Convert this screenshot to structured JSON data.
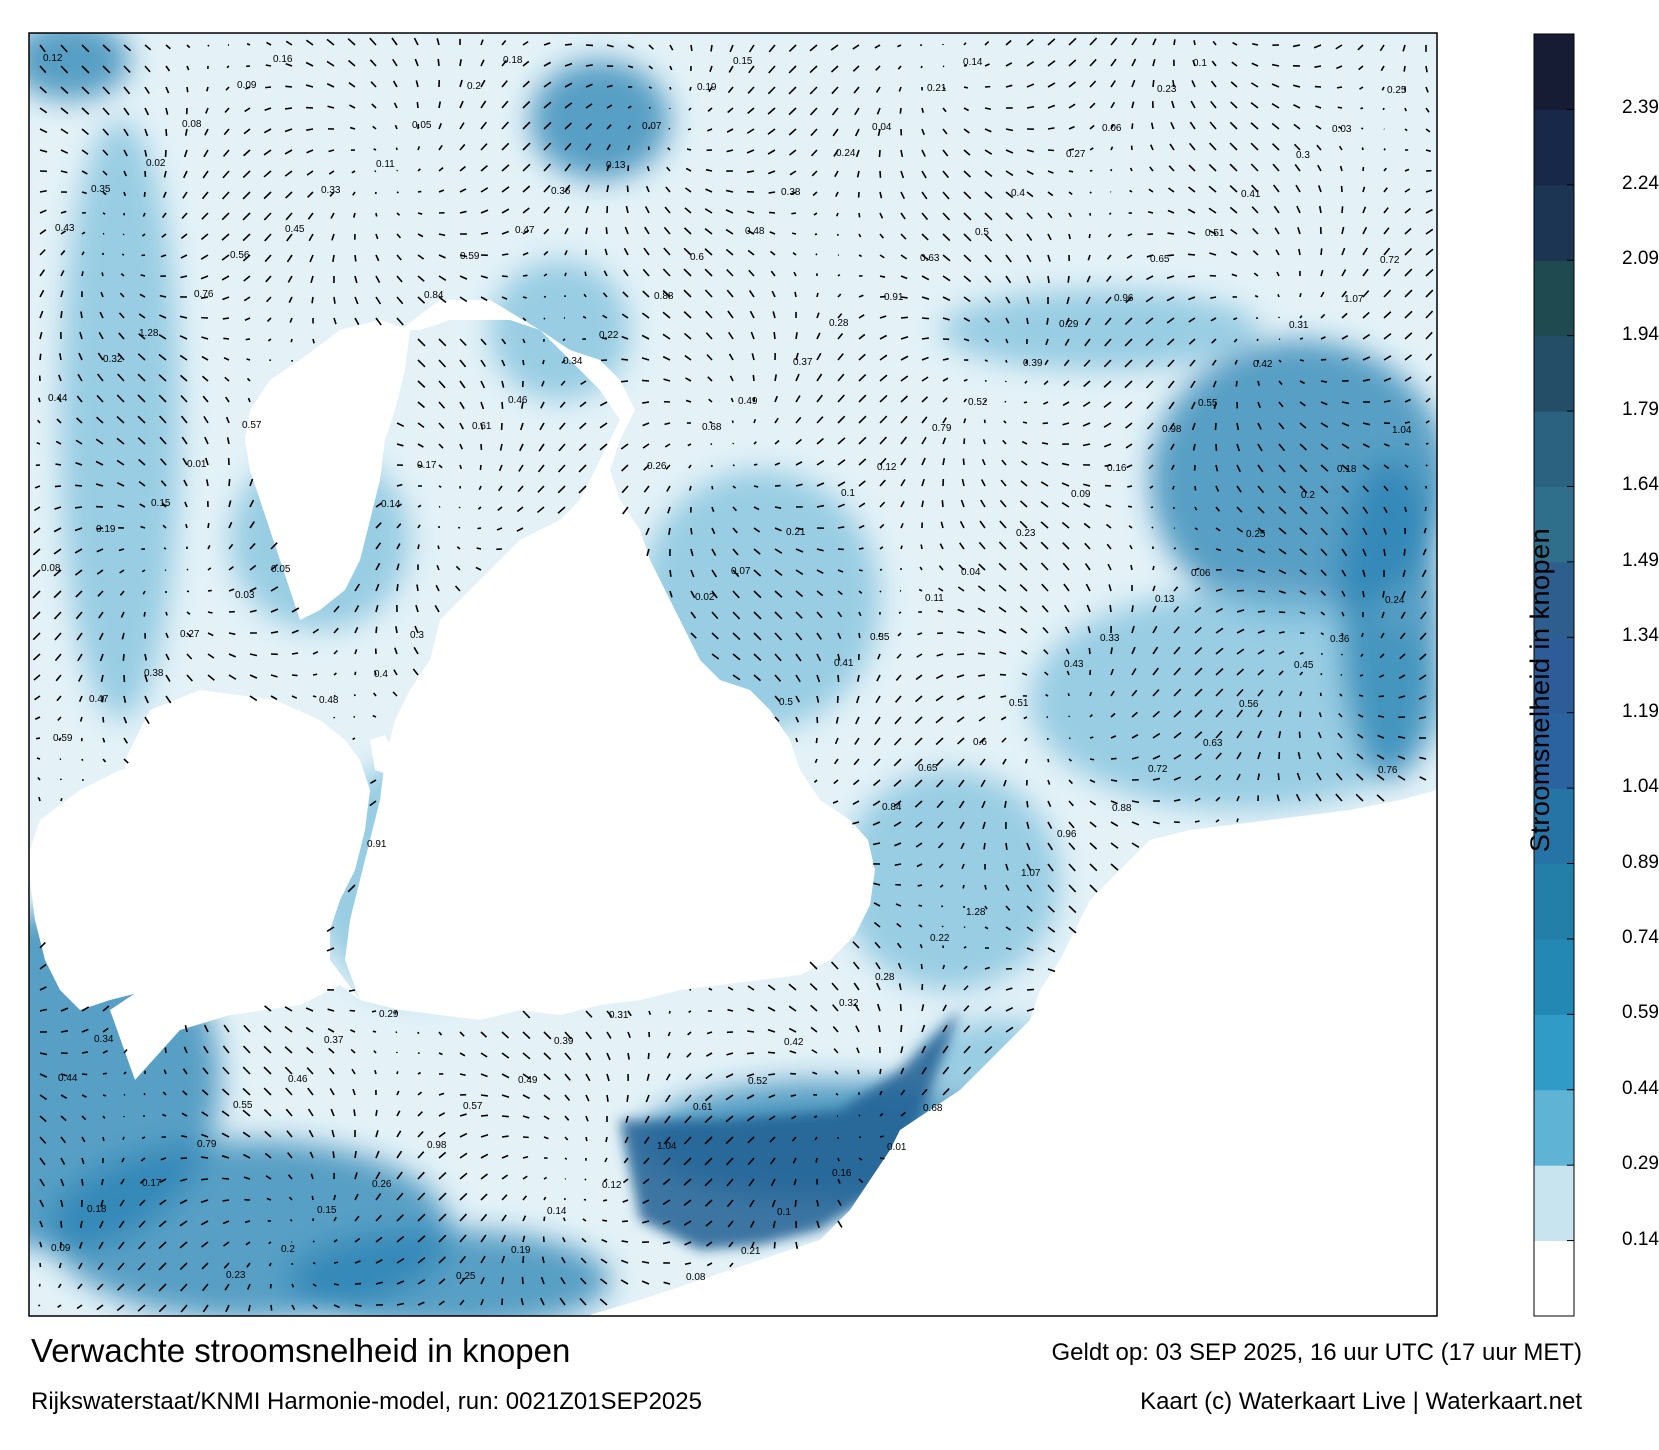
{
  "footer": {
    "title": "Verwachte stroomsnelheid in knopen",
    "model_run": "Rijkswaterstaat/KNMI Harmonie-model, run: 0021Z01SEP2025",
    "valid_time": "Geldt op: 03 SEP 2025, 16 uur UTC (17 uur MET)",
    "credit": "Kaart (c) Waterkaart Live | Waterkaart.net"
  },
  "colorbar": {
    "title": "Stroomsnelheid in knopen",
    "tick_labels": [
      "0.14",
      "0.29",
      "0.44",
      "0.59",
      "0.74",
      "0.89",
      "1.04",
      "1.19",
      "1.34",
      "1.49",
      "1.64",
      "1.79",
      "1.94",
      "2.09",
      "2.24",
      "2.39"
    ],
    "band_colors": [
      "#ffffff",
      "#c8e4ef",
      "#5fb3d4",
      "#2f9bc6",
      "#2388b4",
      "#237fa8",
      "#2673a5",
      "#2b63a0",
      "#2d5c99",
      "#2e5e8e",
      "#2f6f8b",
      "#2b6280",
      "#244e68",
      "#1f4a4f",
      "#1b3553",
      "#182848",
      "#161c33"
    ]
  },
  "map": {
    "colors": {
      "land": "#ffffff",
      "sea_low": "#e4f2f8",
      "sea_mid": "#7fc0dc",
      "sea_high": "#2a83b3",
      "sea_peak": "#1e5f93",
      "arrow": "#000000"
    },
    "sample_labels": [
      "0.12",
      "0.16",
      "0.18",
      "0.15",
      "0.14",
      "0.1",
      "0.09",
      "0.2",
      "0.19",
      "0.21",
      "0.23",
      "0.25",
      "0.08",
      "0.05",
      "0.07",
      "0.04",
      "0.06",
      "0.03",
      "0.02",
      "0.11",
      "0.13",
      "0.24",
      "0.27",
      "0.3",
      "0.35",
      "0.33",
      "0.36",
      "0.38",
      "0.4",
      "0.41",
      "0.43",
      "0.45",
      "0.47",
      "0.48",
      "0.5",
      "0.51",
      "0.56",
      "0.59",
      "0.6",
      "0.63",
      "0.65",
      "0.72",
      "0.76",
      "0.84",
      "0.88",
      "0.91",
      "0.96",
      "1.07",
      "1.28",
      "0.22",
      "0.28",
      "0.29",
      "0.31",
      "0.32",
      "0.34",
      "0.37",
      "0.39",
      "0.42",
      "0.44",
      "0.46",
      "0.49",
      "0.52",
      "0.55",
      "0.57",
      "0.61",
      "0.68",
      "0.79",
      "0.98",
      "1.04",
      "0.01",
      "0.17",
      "0.26"
    ]
  }
}
